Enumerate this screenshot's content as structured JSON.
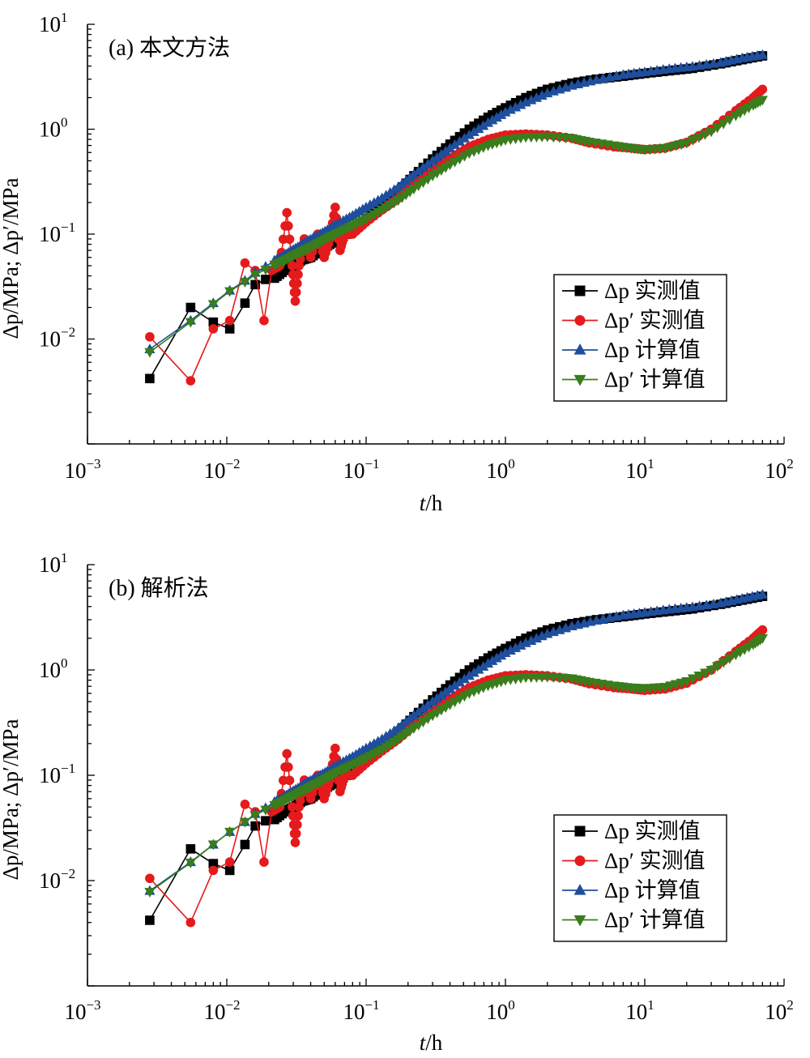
{
  "figure": {
    "panels": [
      {
        "panel_label": "(a) 本文方法",
        "xlabel_italic": "t",
        "xlabel_unit": "/h",
        "ylabel": "Δp/MPa; Δp′/MPa",
        "xticks": [
          "10",
          "10",
          "10",
          "10",
          "10",
          "10"
        ],
        "xtick_exps": [
          "−3",
          "−2",
          "−1",
          "0",
          "1",
          "2"
        ],
        "yticks": [
          "10",
          "10",
          "10",
          "10"
        ],
        "ytick_exps": [
          "−2",
          "−1",
          "0",
          "1"
        ],
        "legend": [
          "Δp 实测值",
          "Δp′ 实测值",
          "Δp 计算值",
          "Δp′ 计算值"
        ]
      },
      {
        "panel_label": "(b) 解析法",
        "xlabel_italic": "t",
        "xlabel_unit": "/h",
        "ylabel": "Δp/MPa; Δp′/MPa",
        "xticks": [
          "10",
          "10",
          "10",
          "10",
          "10",
          "10"
        ],
        "xtick_exps": [
          "−3",
          "−2",
          "−1",
          "0",
          "1",
          "2"
        ],
        "yticks": [
          "10",
          "10",
          "10",
          "10"
        ],
        "ytick_exps": [
          "−2",
          "−1",
          "0",
          "1"
        ],
        "legend": [
          "Δp 实测值",
          "Δp′ 实测值",
          "Δp 计算值",
          "Δp′ 计算值"
        ]
      }
    ]
  },
  "chart_data": [
    {
      "type": "scatter",
      "title": "(a) 本文方法",
      "xlabel": "t/h",
      "ylabel": "Δp/MPa; Δp′/MPa",
      "xscale": "log",
      "yscale": "log",
      "xlim": [
        0.001,
        100
      ],
      "ylim": [
        0.001,
        10
      ],
      "legend_position": "right-middle",
      "series": [
        {
          "name": "Δp 实测值",
          "color": "#000000",
          "marker": "square",
          "x": [
            0.0028,
            0.0055,
            0.008,
            0.0105,
            0.0135,
            0.016,
            0.019,
            0.022,
            0.026,
            0.03,
            0.035,
            0.04,
            0.047,
            0.055,
            0.065,
            0.08,
            0.1,
            0.13,
            0.17,
            0.22,
            0.3,
            0.4,
            0.55,
            0.75,
            1.0,
            1.4,
            2,
            3,
            4.5,
            7,
            10,
            15,
            22,
            35,
            50,
            70
          ],
          "y": [
            0.0042,
            0.02,
            0.0145,
            0.0125,
            0.022,
            0.033,
            0.037,
            0.038,
            0.045,
            0.05,
            0.057,
            0.06,
            0.07,
            0.08,
            0.09,
            0.11,
            0.14,
            0.19,
            0.26,
            0.36,
            0.52,
            0.72,
            1.0,
            1.3,
            1.6,
            2.0,
            2.4,
            2.75,
            3.0,
            3.2,
            3.4,
            3.6,
            3.8,
            4.2,
            4.6,
            5.0
          ]
        },
        {
          "name": "Δp′ 实测值",
          "color": "#e41a1c",
          "marker": "circle",
          "x": [
            0.0028,
            0.0055,
            0.008,
            0.0105,
            0.0135,
            0.016,
            0.0185,
            0.021,
            0.024,
            0.027,
            0.0295,
            0.031,
            0.033,
            0.036,
            0.04,
            0.045,
            0.05,
            0.055,
            0.06,
            0.065,
            0.07,
            0.08,
            0.1,
            0.13,
            0.17,
            0.22,
            0.3,
            0.4,
            0.55,
            0.75,
            1.0,
            1.4,
            2,
            3,
            4,
            6,
            8,
            10,
            14,
            20,
            30,
            45,
            60,
            70
          ],
          "y": [
            0.0105,
            0.004,
            0.0125,
            0.015,
            0.053,
            0.045,
            0.015,
            0.045,
            0.05,
            0.16,
            0.05,
            0.023,
            0.05,
            0.09,
            0.06,
            0.1,
            0.06,
            0.09,
            0.18,
            0.07,
            0.1,
            0.1,
            0.13,
            0.17,
            0.22,
            0.3,
            0.4,
            0.53,
            0.68,
            0.8,
            0.88,
            0.9,
            0.88,
            0.82,
            0.74,
            0.68,
            0.66,
            0.64,
            0.66,
            0.75,
            1.0,
            1.5,
            2.0,
            2.4
          ]
        },
        {
          "name": "Δp 计算值",
          "color": "#1f4e9c",
          "marker": "triangle-up",
          "x": [
            0.0028,
            0.0055,
            0.008,
            0.0105,
            0.0135,
            0.016,
            0.019,
            0.022,
            0.026,
            0.03,
            0.035,
            0.04,
            0.047,
            0.055,
            0.065,
            0.08,
            0.1,
            0.13,
            0.17,
            0.22,
            0.3,
            0.4,
            0.55,
            0.75,
            1.0,
            1.4,
            2,
            3,
            4.5,
            7,
            10,
            15,
            22,
            35,
            50,
            70
          ],
          "y": [
            0.008,
            0.015,
            0.022,
            0.029,
            0.036,
            0.043,
            0.049,
            0.056,
            0.063,
            0.071,
            0.08,
            0.089,
            0.1,
            0.113,
            0.129,
            0.15,
            0.18,
            0.22,
            0.28,
            0.37,
            0.5,
            0.66,
            0.88,
            1.15,
            1.45,
            1.8,
            2.2,
            2.6,
            2.95,
            3.3,
            3.5,
            3.75,
            3.95,
            4.3,
            4.75,
            5.1
          ]
        },
        {
          "name": "Δp′ 计算值",
          "color": "#3a7d1c",
          "marker": "triangle-down",
          "x": [
            0.0028,
            0.0055,
            0.008,
            0.0105,
            0.0135,
            0.016,
            0.019,
            0.022,
            0.026,
            0.03,
            0.035,
            0.04,
            0.047,
            0.055,
            0.065,
            0.08,
            0.1,
            0.13,
            0.17,
            0.22,
            0.3,
            0.4,
            0.55,
            0.75,
            1.0,
            1.4,
            2,
            3,
            4,
            6,
            8,
            10,
            14,
            20,
            30,
            45,
            60,
            70
          ],
          "y": [
            0.0075,
            0.0145,
            0.0215,
            0.0285,
            0.035,
            0.041,
            0.046,
            0.051,
            0.056,
            0.062,
            0.069,
            0.075,
            0.084,
            0.094,
            0.105,
            0.12,
            0.14,
            0.17,
            0.21,
            0.27,
            0.36,
            0.46,
            0.59,
            0.7,
            0.79,
            0.84,
            0.85,
            0.82,
            0.76,
            0.7,
            0.66,
            0.64,
            0.66,
            0.74,
            0.95,
            1.35,
            1.7,
            1.9
          ]
        }
      ]
    },
    {
      "type": "scatter",
      "title": "(b) 解析法",
      "xlabel": "t/h",
      "ylabel": "Δp/MPa; Δp′/MPa",
      "xscale": "log",
      "yscale": "log",
      "xlim": [
        0.001,
        100
      ],
      "ylim": [
        0.001,
        10
      ],
      "legend_position": "right-middle",
      "series": [
        {
          "name": "Δp 实测值",
          "color": "#000000",
          "marker": "square",
          "x": [
            0.0028,
            0.0055,
            0.008,
            0.0105,
            0.0135,
            0.016,
            0.019,
            0.022,
            0.026,
            0.03,
            0.035,
            0.04,
            0.047,
            0.055,
            0.065,
            0.08,
            0.1,
            0.13,
            0.17,
            0.22,
            0.3,
            0.4,
            0.55,
            0.75,
            1.0,
            1.4,
            2,
            3,
            4.5,
            7,
            10,
            15,
            22,
            35,
            50,
            70
          ],
          "y": [
            0.0042,
            0.02,
            0.0145,
            0.0125,
            0.022,
            0.033,
            0.037,
            0.038,
            0.045,
            0.05,
            0.057,
            0.06,
            0.07,
            0.08,
            0.09,
            0.11,
            0.14,
            0.19,
            0.26,
            0.36,
            0.52,
            0.72,
            1.0,
            1.3,
            1.6,
            2.0,
            2.4,
            2.75,
            3.0,
            3.2,
            3.4,
            3.6,
            3.8,
            4.2,
            4.6,
            5.0
          ]
        },
        {
          "name": "Δp′ 实测值",
          "color": "#e41a1c",
          "marker": "circle",
          "x": [
            0.0028,
            0.0055,
            0.008,
            0.0105,
            0.0135,
            0.016,
            0.0185,
            0.021,
            0.024,
            0.027,
            0.0295,
            0.031,
            0.033,
            0.036,
            0.04,
            0.045,
            0.05,
            0.055,
            0.06,
            0.065,
            0.07,
            0.08,
            0.1,
            0.13,
            0.17,
            0.22,
            0.3,
            0.4,
            0.55,
            0.75,
            1.0,
            1.4,
            2,
            3,
            4,
            6,
            8,
            10,
            14,
            20,
            30,
            45,
            60,
            70
          ],
          "y": [
            0.0105,
            0.004,
            0.0125,
            0.015,
            0.053,
            0.045,
            0.015,
            0.045,
            0.05,
            0.16,
            0.05,
            0.023,
            0.05,
            0.09,
            0.06,
            0.1,
            0.06,
            0.09,
            0.18,
            0.07,
            0.1,
            0.1,
            0.13,
            0.17,
            0.22,
            0.3,
            0.4,
            0.53,
            0.68,
            0.8,
            0.88,
            0.9,
            0.88,
            0.82,
            0.74,
            0.68,
            0.66,
            0.64,
            0.66,
            0.75,
            1.0,
            1.5,
            2.0,
            2.4
          ]
        },
        {
          "name": "Δp 计算值",
          "color": "#1f4e9c",
          "marker": "triangle-up",
          "x": [
            0.0028,
            0.0055,
            0.008,
            0.0105,
            0.0135,
            0.016,
            0.019,
            0.022,
            0.026,
            0.03,
            0.035,
            0.04,
            0.047,
            0.055,
            0.065,
            0.08,
            0.1,
            0.13,
            0.17,
            0.22,
            0.3,
            0.4,
            0.55,
            0.75,
            1.0,
            1.4,
            2,
            3,
            4.5,
            7,
            10,
            15,
            22,
            35,
            50,
            70
          ],
          "y": [
            0.008,
            0.015,
            0.022,
            0.029,
            0.036,
            0.043,
            0.049,
            0.056,
            0.063,
            0.071,
            0.08,
            0.089,
            0.1,
            0.113,
            0.129,
            0.15,
            0.18,
            0.22,
            0.28,
            0.37,
            0.5,
            0.66,
            0.88,
            1.15,
            1.45,
            1.8,
            2.2,
            2.6,
            2.95,
            3.3,
            3.5,
            3.75,
            3.95,
            4.3,
            4.75,
            5.2
          ]
        },
        {
          "name": "Δp′ 计算值",
          "color": "#3a7d1c",
          "marker": "triangle-down",
          "x": [
            0.0028,
            0.0055,
            0.008,
            0.0105,
            0.0135,
            0.016,
            0.019,
            0.022,
            0.026,
            0.03,
            0.035,
            0.04,
            0.047,
            0.055,
            0.065,
            0.08,
            0.1,
            0.13,
            0.17,
            0.22,
            0.3,
            0.4,
            0.55,
            0.75,
            1.0,
            1.4,
            2,
            3,
            4,
            6,
            8,
            10,
            14,
            20,
            30,
            45,
            60,
            70
          ],
          "y": [
            0.0078,
            0.0148,
            0.022,
            0.029,
            0.036,
            0.042,
            0.047,
            0.052,
            0.058,
            0.064,
            0.071,
            0.078,
            0.087,
            0.098,
            0.11,
            0.125,
            0.145,
            0.175,
            0.22,
            0.28,
            0.37,
            0.47,
            0.6,
            0.71,
            0.8,
            0.85,
            0.86,
            0.83,
            0.77,
            0.71,
            0.68,
            0.67,
            0.69,
            0.78,
            1.0,
            1.4,
            1.75,
            2.0
          ]
        }
      ]
    }
  ]
}
